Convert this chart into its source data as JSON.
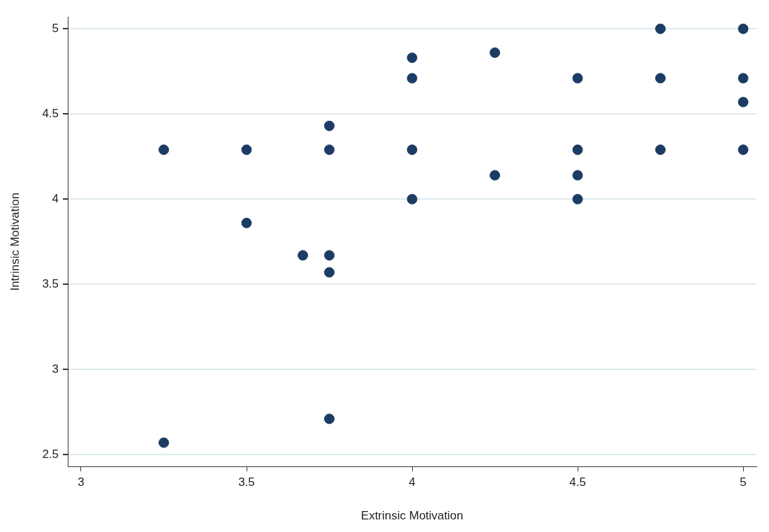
{
  "chart_data": {
    "type": "scatter",
    "xlabel": "Extrinsic Motivation",
    "ylabel": "Intrinsic Motivation",
    "x": [
      3.25,
      3.25,
      3.5,
      3.5,
      3.67,
      3.75,
      3.75,
      3.75,
      3.75,
      3.75,
      4,
      4,
      4,
      4,
      4.25,
      4.25,
      4.5,
      4.5,
      4.5,
      4.5,
      4.75,
      4.75,
      4.75,
      5,
      5,
      5,
      5
    ],
    "values": [
      2.57,
      4.29,
      4.29,
      3.86,
      3.67,
      3.67,
      3.57,
      2.71,
      4.29,
      4.43,
      4.83,
      4.71,
      4.29,
      4,
      4.86,
      4.14,
      4.71,
      4.29,
      4.14,
      4,
      5,
      4.71,
      4.29,
      5,
      4.71,
      4.57,
      4.29
    ],
    "color": "#1c3d63",
    "marker": "circle",
    "xlim": [
      2.96,
      5.04
    ],
    "xticks": [
      3,
      3.5,
      4,
      4.5,
      5
    ],
    "ylim": [
      2.43,
      5.07
    ],
    "yticks": [
      2.5,
      3,
      3.5,
      4,
      4.5,
      5
    ],
    "grid": "y",
    "legend": false
  }
}
